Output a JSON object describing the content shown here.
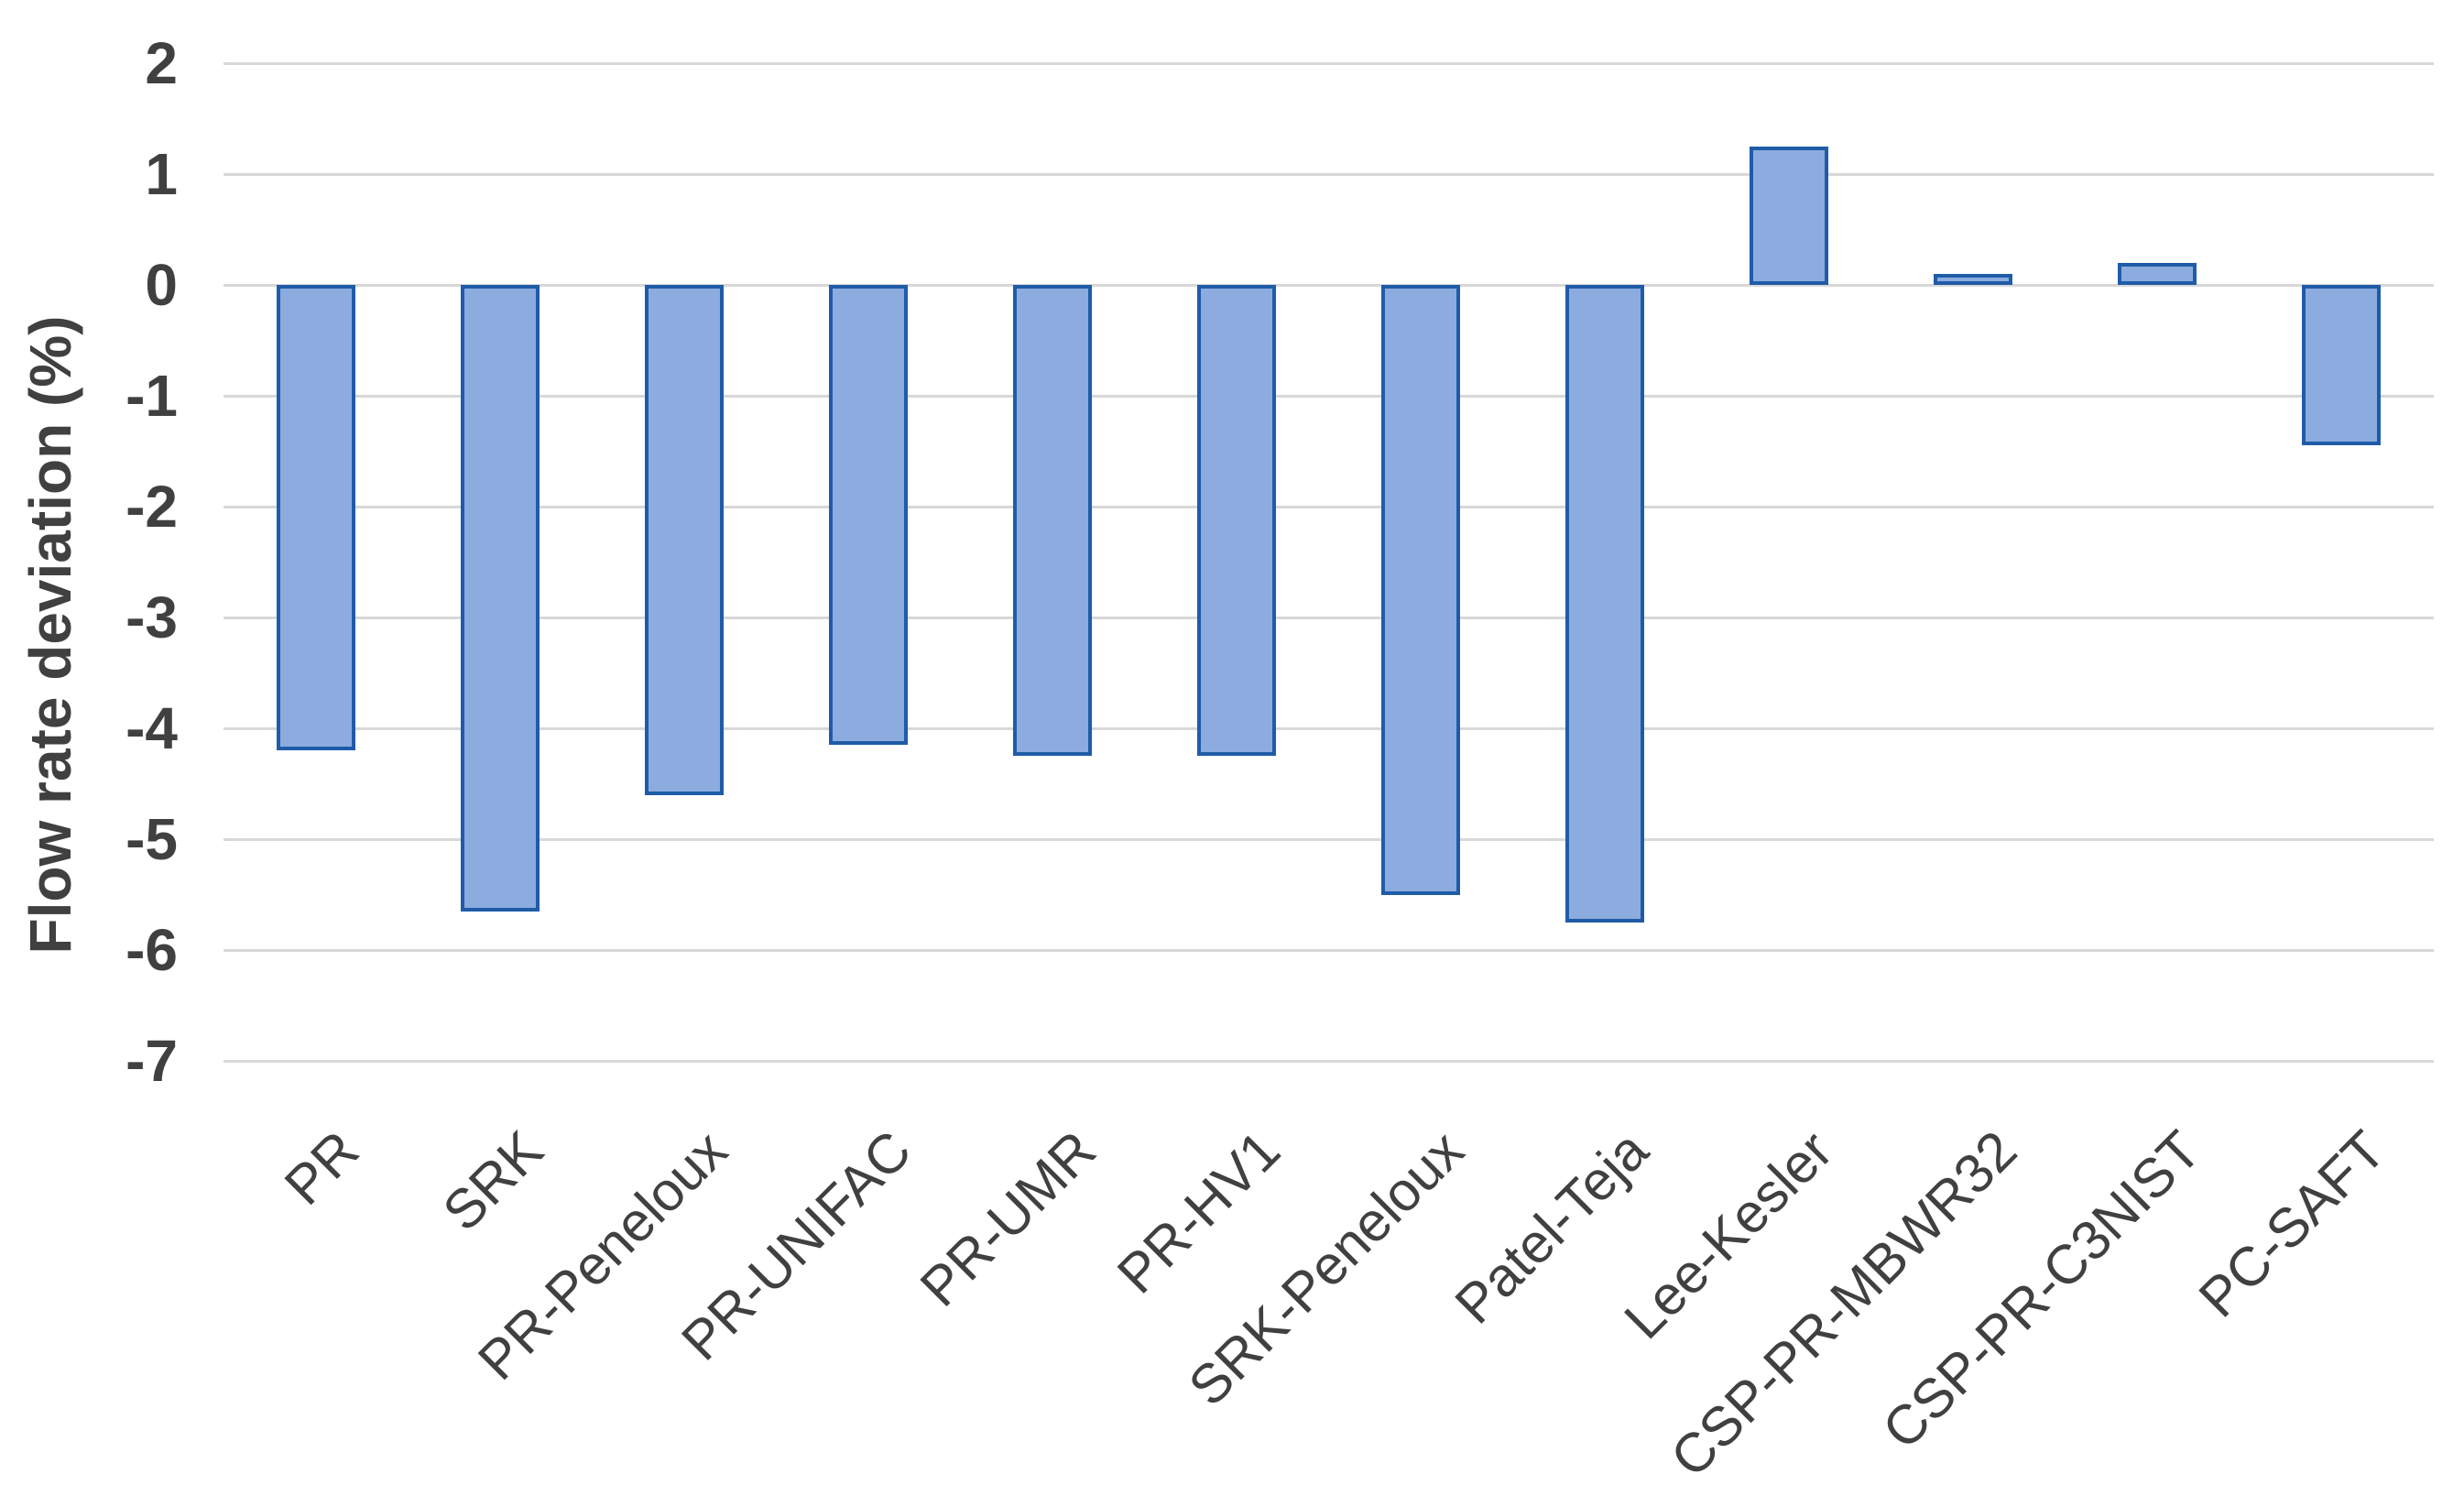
{
  "chart_data": {
    "type": "bar",
    "title": "",
    "ylabel": "Flow rate deviation (%)",
    "xlabel": "",
    "categories": [
      "PR",
      "SRK",
      "PR-Peneloux",
      "PR-UNIFAC",
      "PR-UMR",
      "PR-HV1",
      "SRK-Peneloux",
      "Patel-Teja",
      "Lee-Kesler",
      "CSP-PR-MBWR32",
      "CSP-PR-C3NIST",
      "PC-SAFT"
    ],
    "values": [
      -4.2,
      -5.65,
      -4.6,
      -4.15,
      -4.25,
      -4.25,
      -5.5,
      -5.75,
      1.25,
      0.1,
      0.2,
      -1.45
    ],
    "ylim": [
      -7,
      2
    ],
    "ytick_labels": [
      "2",
      "1",
      "0",
      "-1",
      "-2",
      "-3",
      "-4",
      "-5",
      "-6",
      "-7"
    ],
    "ytick_values": [
      2,
      1,
      0,
      -1,
      -2,
      -3,
      -4,
      -5,
      -6,
      -7
    ],
    "grid": true,
    "legend": "none",
    "colors": {
      "bar_fill": "#8CACDF",
      "bar_border": "#1F5CA8",
      "gridline": "#D8D8D8",
      "axis_text": "#404040"
    }
  }
}
